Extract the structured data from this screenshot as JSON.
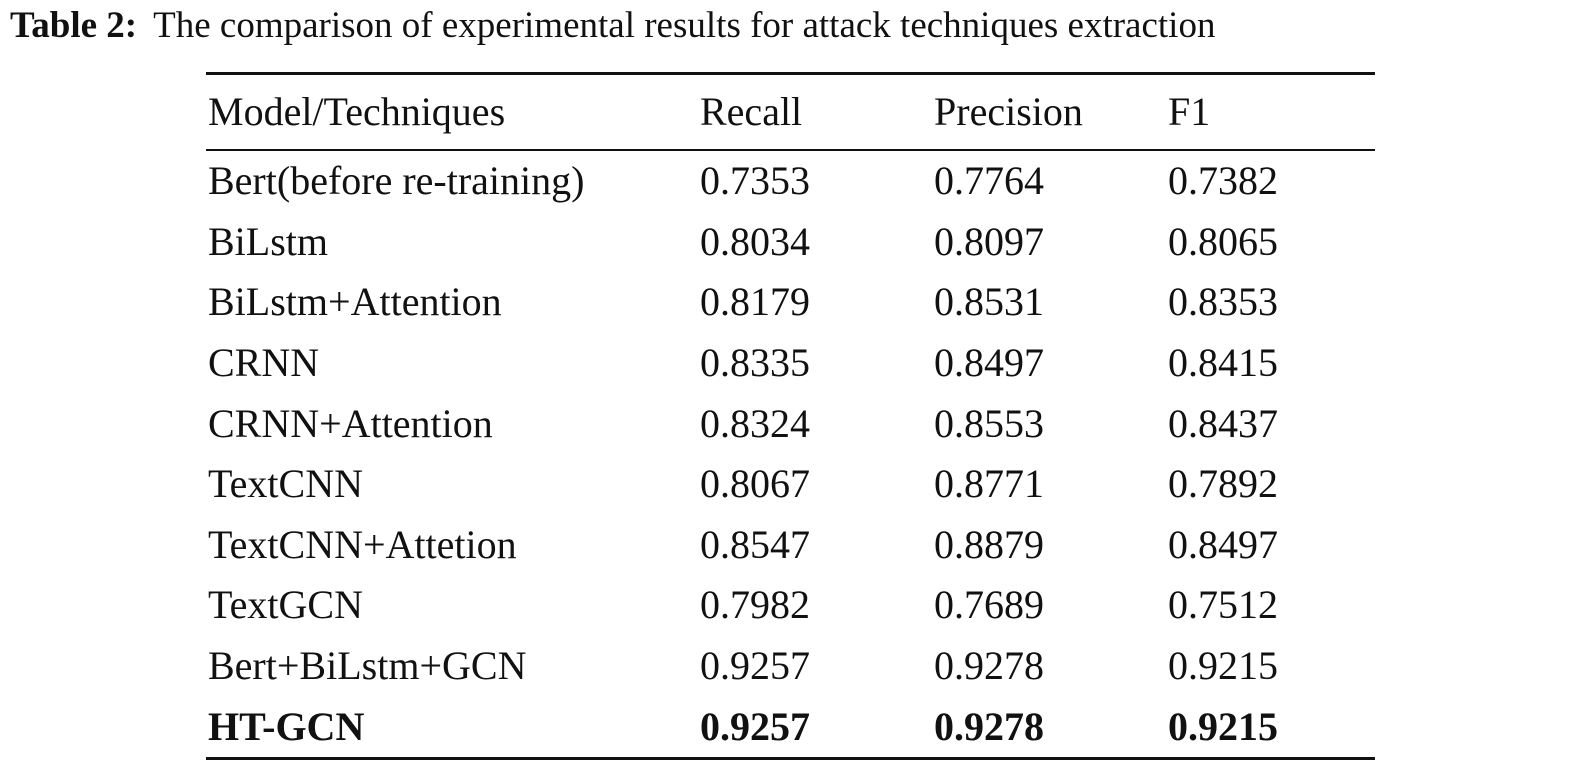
{
  "caption": {
    "label": "Table 2:",
    "text": "The comparison of experimental results for attack techniques extraction"
  },
  "table": {
    "headers": [
      "Model/Techniques",
      "Recall",
      "Precision",
      "F1"
    ],
    "rows": [
      [
        "Bert(before re-training)",
        "0.7353",
        "0.7764",
        "0.7382"
      ],
      [
        "BiLstm",
        "0.8034",
        "0.8097",
        "0.8065"
      ],
      [
        "BiLstm+Attention",
        "0.8179",
        "0.8531",
        "0.8353"
      ],
      [
        "CRNN",
        "0.8335",
        "0.8497",
        "0.8415"
      ],
      [
        "CRNN+Attention",
        "0.8324",
        "0.8553",
        "0.8437"
      ],
      [
        "TextCNN",
        "0.8067",
        "0.8771",
        "0.7892"
      ],
      [
        "TextCNN+Attetion",
        "0.8547",
        "0.8879",
        "0.8497"
      ],
      [
        "TextGCN",
        "0.7982",
        "0.7689",
        "0.7512"
      ],
      [
        "Bert+BiLstm+GCN",
        "0.9257",
        "0.9278",
        "0.9215"
      ],
      [
        "HT-GCN",
        "0.9257",
        "0.9278",
        "0.9215"
      ]
    ],
    "bold_row_index": 9
  }
}
